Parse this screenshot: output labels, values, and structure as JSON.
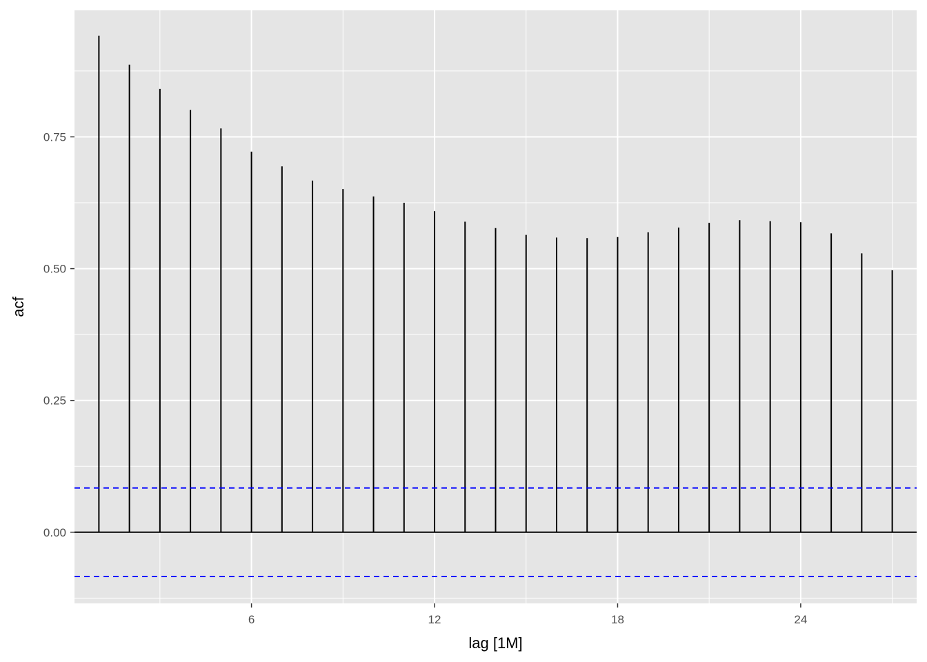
{
  "chart_data": {
    "type": "bar",
    "xlabel": "lag [1M]",
    "ylabel": "acf",
    "x": [
      1,
      2,
      3,
      4,
      5,
      6,
      7,
      8,
      9,
      10,
      11,
      12,
      13,
      14,
      15,
      16,
      17,
      18,
      19,
      20,
      21,
      22,
      23,
      24,
      25,
      26,
      27
    ],
    "values": [
      0.942,
      0.887,
      0.841,
      0.801,
      0.766,
      0.722,
      0.694,
      0.667,
      0.651,
      0.637,
      0.625,
      0.609,
      0.589,
      0.577,
      0.564,
      0.559,
      0.558,
      0.56,
      0.569,
      0.578,
      0.587,
      0.592,
      0.59,
      0.588,
      0.567,
      0.529,
      0.497
    ],
    "xlim": [
      0.2,
      27.8
    ],
    "ylim": [
      -0.135,
      0.99
    ],
    "x_ticks": [
      6,
      12,
      18,
      24
    ],
    "x_tick_labels": [
      "6",
      "12",
      "18",
      "24"
    ],
    "y_ticks": [
      0,
      0.25,
      0.5,
      0.75
    ],
    "y_tick_labels": [
      "0.00",
      "0.25",
      "0.50",
      "0.75"
    ],
    "confidence_bound": 0.084,
    "grid": true,
    "colors": {
      "panel": "#e5e5e5",
      "grid": "#ffffff",
      "bars": "#000000",
      "confidence": "#0000ff"
    }
  }
}
